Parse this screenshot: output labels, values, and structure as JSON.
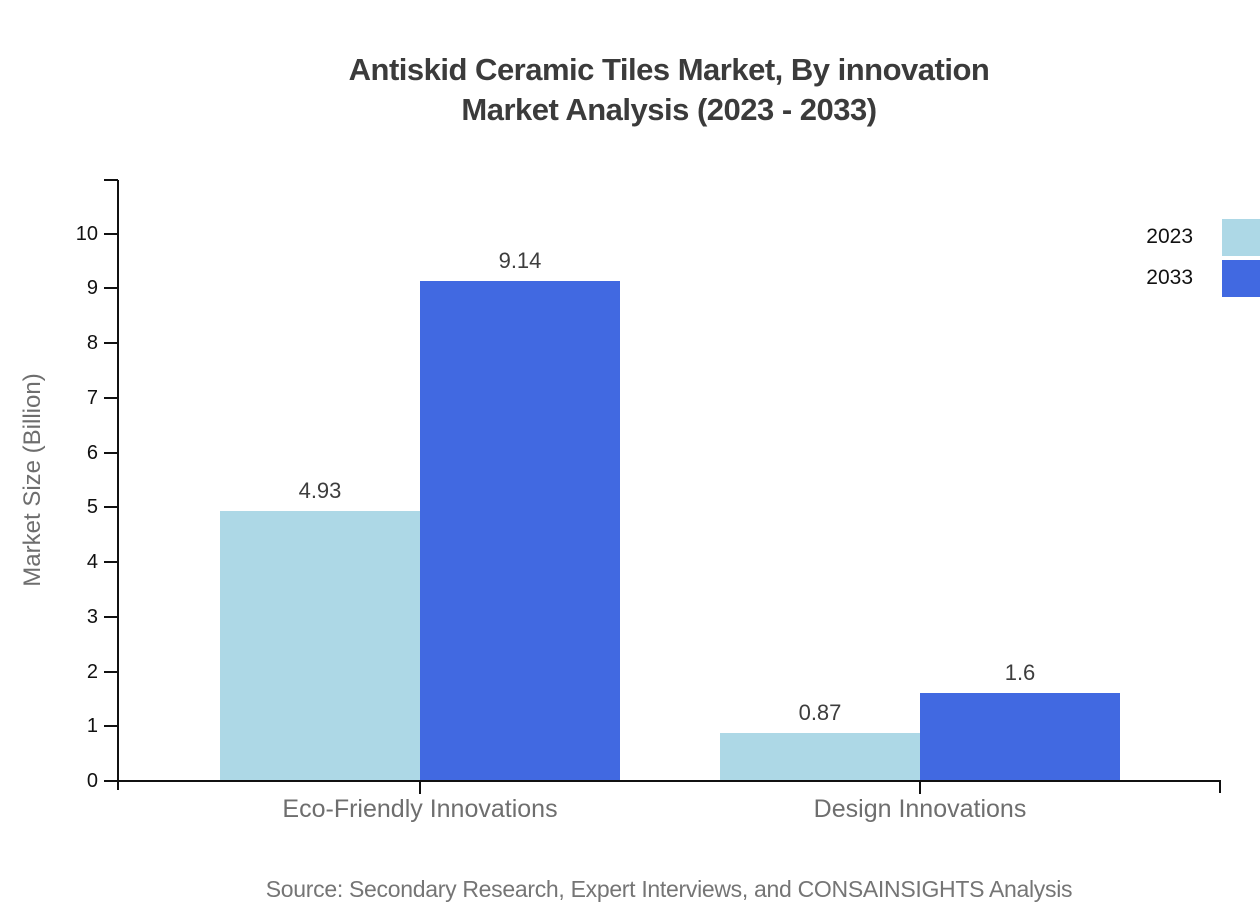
{
  "title": {
    "line1": "Antiskid Ceramic Tiles Market, By innovation",
    "line2": "Market Analysis (2023 - 2033)"
  },
  "source": "Source: Secondary Research, Expert Interviews, and CONSAINSIGHTS Analysis",
  "colors": {
    "series_2023": "#ADD8E6",
    "series_2033": "#4169E1",
    "axis": "#111111",
    "title_text": "#3b3b3b",
    "muted_text": "#6e6e6e",
    "value_label_text": "#3d3d3d",
    "source_text": "#757575",
    "background": "#ffffff"
  },
  "chart_data": {
    "type": "bar",
    "title": "Antiskid Ceramic Tiles Market, By innovation Market Analysis (2023 - 2033)",
    "categories": [
      "Eco-Friendly Innovations",
      "Design Innovations"
    ],
    "series": [
      {
        "name": "2023",
        "color": "#ADD8E6",
        "values": [
          4.93,
          0.87
        ],
        "labels": [
          "4.93",
          "0.87"
        ]
      },
      {
        "name": "2033",
        "color": "#4169E1",
        "values": [
          9.14,
          1.6
        ],
        "labels": [
          "9.14",
          "1.6"
        ]
      }
    ],
    "xlabel": "",
    "ylabel": "Market Size (Billion)",
    "ylim": [
      0,
      10
    ],
    "yticks": [
      0,
      1,
      2,
      3,
      4,
      5,
      6,
      7,
      8,
      9,
      10
    ],
    "grid": false,
    "legend_position": "top-right"
  }
}
